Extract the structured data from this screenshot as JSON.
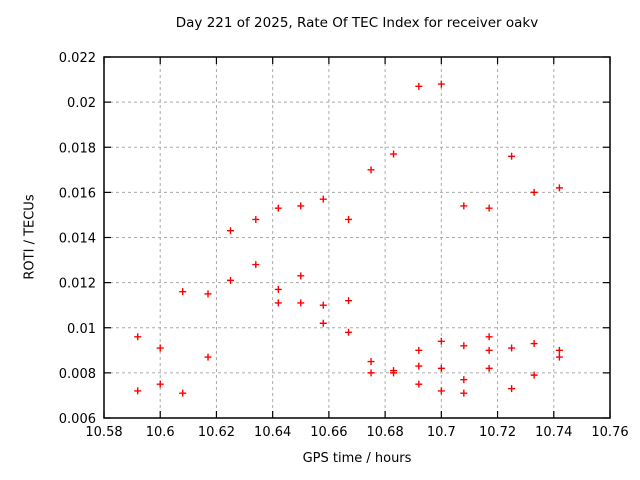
{
  "chart_data": {
    "type": "scatter",
    "title": "Day 221 of 2025, Rate Of TEC Index for receiver oakv",
    "xlabel": "GPS time / hours",
    "ylabel": "ROTI / TECUs",
    "xlim": [
      10.58,
      10.76
    ],
    "ylim": [
      0.006,
      0.022
    ],
    "xticks": [
      10.58,
      10.6,
      10.62,
      10.64,
      10.66,
      10.68,
      10.7,
      10.72,
      10.74,
      10.76
    ],
    "yticks": [
      0.006,
      0.008,
      0.01,
      0.012,
      0.014,
      0.016,
      0.018,
      0.02,
      0.022
    ],
    "grid": true,
    "legend": "none",
    "marker": "plus",
    "marker_color": "#ff0000",
    "grid_color": "#aaaaaa",
    "frame_color": "#000000",
    "series": [
      {
        "name": "ROTI",
        "points": [
          [
            10.592,
            0.0096
          ],
          [
            10.592,
            0.0072
          ],
          [
            10.6,
            0.0091
          ],
          [
            10.6,
            0.0075
          ],
          [
            10.608,
            0.0116
          ],
          [
            10.608,
            0.0071
          ],
          [
            10.617,
            0.0115
          ],
          [
            10.617,
            0.0087
          ],
          [
            10.625,
            0.0143
          ],
          [
            10.625,
            0.0121
          ],
          [
            10.634,
            0.0148
          ],
          [
            10.634,
            0.0128
          ],
          [
            10.642,
            0.0153
          ],
          [
            10.642,
            0.0117
          ],
          [
            10.642,
            0.0111
          ],
          [
            10.65,
            0.0154
          ],
          [
            10.65,
            0.0123
          ],
          [
            10.65,
            0.0111
          ],
          [
            10.658,
            0.0157
          ],
          [
            10.658,
            0.011
          ],
          [
            10.658,
            0.0102
          ],
          [
            10.667,
            0.0148
          ],
          [
            10.667,
            0.0112
          ],
          [
            10.667,
            0.0098
          ],
          [
            10.675,
            0.017
          ],
          [
            10.675,
            0.0085
          ],
          [
            10.675,
            0.008
          ],
          [
            10.683,
            0.0177
          ],
          [
            10.683,
            0.0081
          ],
          [
            10.683,
            0.008
          ],
          [
            10.692,
            0.0207
          ],
          [
            10.692,
            0.009
          ],
          [
            10.692,
            0.0083
          ],
          [
            10.692,
            0.0075
          ],
          [
            10.7,
            0.0208
          ],
          [
            10.7,
            0.0094
          ],
          [
            10.7,
            0.0082
          ],
          [
            10.7,
            0.0072
          ],
          [
            10.708,
            0.0154
          ],
          [
            10.708,
            0.0092
          ],
          [
            10.708,
            0.0077
          ],
          [
            10.708,
            0.0071
          ],
          [
            10.717,
            0.0153
          ],
          [
            10.717,
            0.0096
          ],
          [
            10.717,
            0.009
          ],
          [
            10.717,
            0.0082
          ],
          [
            10.725,
            0.0176
          ],
          [
            10.725,
            0.0091
          ],
          [
            10.725,
            0.0073
          ],
          [
            10.733,
            0.016
          ],
          [
            10.733,
            0.0093
          ],
          [
            10.733,
            0.0079
          ],
          [
            10.742,
            0.0162
          ],
          [
            10.742,
            0.009
          ],
          [
            10.742,
            0.0087
          ]
        ]
      }
    ]
  }
}
